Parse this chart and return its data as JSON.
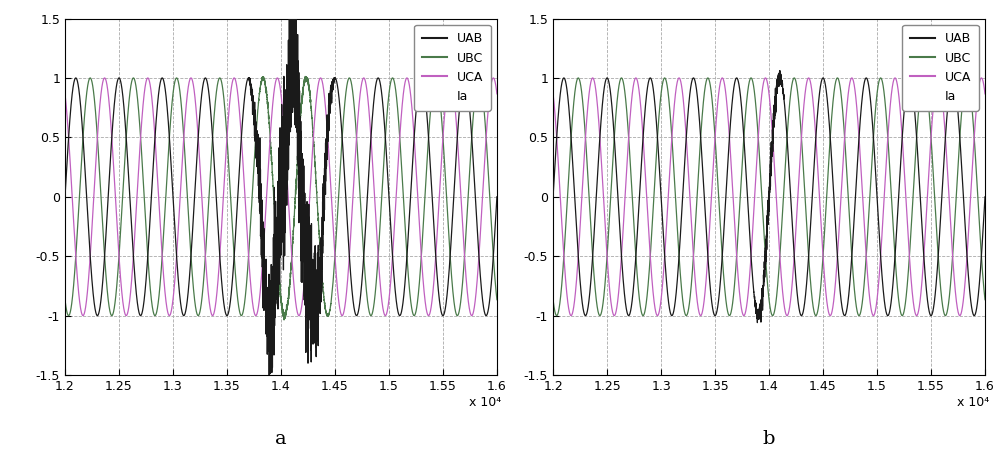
{
  "xlim": [
    12000,
    16000
  ],
  "ylim": [
    -1.5,
    1.5
  ],
  "yticks": [
    -1.5,
    -1.0,
    -0.5,
    0.0,
    0.5,
    1.0,
    1.5
  ],
  "ytick_labels": [
    "-1.5",
    "-1",
    "-0.5",
    "0",
    "0.5",
    "1",
    "1.5"
  ],
  "xticks": [
    12000,
    12500,
    13000,
    13500,
    14000,
    14500,
    15000,
    15500,
    16000
  ],
  "xtick_labels": [
    "1.2",
    "1.25",
    "1.3",
    "1.35",
    "1.4",
    "1.45",
    "1.5",
    "1.55",
    "1.6"
  ],
  "x_exp_label": "x 10⁴",
  "color_UAB": "#1a1a1a",
  "color_UBC": "#4a7a4a",
  "color_UCA": "#c060c0",
  "subplot_labels": [
    "a",
    "b"
  ],
  "cycle_period": 400,
  "x_start": 12000,
  "n_points": 4001,
  "grid_color": "#aaaaaa",
  "grid_linestyle": "--",
  "background_color": "#ffffff",
  "line_width": 0.9,
  "disturbance_start_a": 13700,
  "disturbance_end_a": 14500,
  "disturbance_start_b": 13850,
  "disturbance_end_b": 14150
}
